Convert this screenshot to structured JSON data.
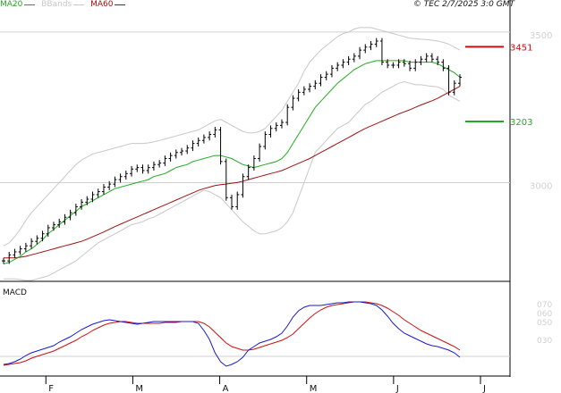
{
  "legend": [
    {
      "label": "MA20",
      "color": "#2ca02c"
    },
    {
      "label": "BBands",
      "color": "#c8c8c8"
    },
    {
      "label": "MA60",
      "color": "#a01010"
    }
  ],
  "credit": "© TEC 2/7/2025 3:0 GMT",
  "macd_title": "MACD",
  "colors": {
    "price": "#000000",
    "ma20": "#22aa22",
    "ma60": "#a01010",
    "bbands": "#c8c8c8",
    "macd": "#1a1ad0",
    "signal": "#cc1010",
    "resistance": "#cc1010",
    "support": "#22aa22"
  },
  "chart_data": {
    "type": "line",
    "price_panel": {
      "ylim": [
        2675,
        3565
      ],
      "y_ticks": [
        {
          "value": 3000,
          "label": "3000"
        },
        {
          "value": 3500,
          "label": "3500"
        }
      ],
      "close": [
        2740,
        2760,
        2770,
        2780,
        2790,
        2805,
        2815,
        2830,
        2850,
        2860,
        2870,
        2885,
        2900,
        2920,
        2935,
        2945,
        2960,
        2970,
        2985,
        2995,
        3010,
        3020,
        3030,
        3045,
        3050,
        3040,
        3050,
        3060,
        3065,
        3080,
        3090,
        3100,
        3105,
        3115,
        3130,
        3140,
        3150,
        3160,
        3175,
        3070,
        2950,
        2920,
        2960,
        3020,
        3050,
        3080,
        3120,
        3160,
        3180,
        3190,
        3200,
        3250,
        3280,
        3300,
        3310,
        3320,
        3330,
        3350,
        3360,
        3380,
        3390,
        3400,
        3410,
        3420,
        3440,
        3450,
        3460,
        3470,
        3400,
        3390,
        3390,
        3400,
        3395,
        3380,
        3400,
        3410,
        3420,
        3410,
        3400,
        3380,
        3300,
        3330,
        3350
      ],
      "ma20": [
        2730,
        2735,
        2745,
        2755,
        2770,
        2780,
        2795,
        2810,
        2830,
        2845,
        2860,
        2875,
        2890,
        2905,
        2920,
        2930,
        2940,
        2950,
        2960,
        2970,
        2980,
        2985,
        2990,
        2995,
        3000,
        3005,
        3010,
        3020,
        3025,
        3030,
        3040,
        3050,
        3055,
        3060,
        3070,
        3075,
        3080,
        3085,
        3090,
        3090,
        3085,
        3080,
        3070,
        3060,
        3055,
        3050,
        3055,
        3060,
        3065,
        3070,
        3080,
        3100,
        3130,
        3160,
        3190,
        3220,
        3250,
        3270,
        3290,
        3310,
        3330,
        3345,
        3360,
        3375,
        3385,
        3395,
        3400,
        3405,
        3405,
        3405,
        3405,
        3405,
        3405,
        3400,
        3400,
        3400,
        3400,
        3400,
        3395,
        3385,
        3375,
        3365,
        3350
      ],
      "ma60": [
        2750,
        2750,
        2750,
        2752,
        2755,
        2760,
        2765,
        2770,
        2775,
        2780,
        2785,
        2790,
        2795,
        2800,
        2805,
        2812,
        2820,
        2828,
        2836,
        2845,
        2854,
        2862,
        2870,
        2878,
        2886,
        2894,
        2902,
        2910,
        2918,
        2926,
        2934,
        2942,
        2950,
        2958,
        2966,
        2974,
        2980,
        2985,
        2990,
        2993,
        2995,
        2998,
        3000,
        3005,
        3010,
        3015,
        3020,
        3025,
        3030,
        3035,
        3040,
        3048,
        3056,
        3064,
        3072,
        3080,
        3090,
        3100,
        3110,
        3120,
        3130,
        3140,
        3150,
        3160,
        3170,
        3180,
        3188,
        3196,
        3204,
        3212,
        3220,
        3228,
        3235,
        3242,
        3250,
        3258,
        3265,
        3272,
        3280,
        3290,
        3300,
        3310,
        3320
      ],
      "bb_upper": [
        2790,
        2800,
        2820,
        2845,
        2875,
        2900,
        2920,
        2940,
        2960,
        2980,
        3000,
        3020,
        3040,
        3060,
        3075,
        3085,
        3095,
        3100,
        3105,
        3110,
        3115,
        3120,
        3125,
        3130,
        3130,
        3130,
        3132,
        3135,
        3140,
        3145,
        3150,
        3155,
        3160,
        3165,
        3170,
        3175,
        3185,
        3195,
        3205,
        3210,
        3200,
        3190,
        3180,
        3170,
        3165,
        3165,
        3170,
        3180,
        3200,
        3220,
        3240,
        3270,
        3300,
        3330,
        3370,
        3400,
        3420,
        3440,
        3455,
        3470,
        3485,
        3495,
        3500,
        3510,
        3515,
        3515,
        3515,
        3510,
        3505,
        3500,
        3495,
        3490,
        3485,
        3480,
        3478,
        3476,
        3475,
        3473,
        3470,
        3466,
        3460,
        3450,
        3440
      ],
      "bb_lower": [
        2680,
        2680,
        2680,
        2678,
        2675,
        2675,
        2680,
        2685,
        2690,
        2700,
        2710,
        2720,
        2730,
        2740,
        2755,
        2770,
        2785,
        2800,
        2810,
        2820,
        2830,
        2840,
        2850,
        2860,
        2865,
        2870,
        2880,
        2885,
        2895,
        2905,
        2915,
        2925,
        2935,
        2945,
        2955,
        2965,
        2975,
        2970,
        2960,
        2950,
        2930,
        2910,
        2890,
        2870,
        2855,
        2840,
        2830,
        2830,
        2835,
        2840,
        2850,
        2870,
        2900,
        2950,
        3000,
        3050,
        3100,
        3120,
        3140,
        3160,
        3180,
        3190,
        3200,
        3220,
        3240,
        3260,
        3270,
        3285,
        3300,
        3310,
        3320,
        3330,
        3335,
        3330,
        3325,
        3325,
        3322,
        3320,
        3318,
        3310,
        3290,
        3280,
        3270
      ],
      "levels": [
        {
          "label": "3451",
          "value": 3451
        },
        {
          "label": "3203",
          "value": 3203
        }
      ]
    },
    "macd_panel": {
      "ylim": [
        -10,
        90
      ],
      "y_ticks": [
        {
          "value": 30,
          "label": "030"
        },
        {
          "value": 50,
          "label": "050"
        },
        {
          "value": 60,
          "label": "060"
        },
        {
          "value": 70,
          "label": "070"
        }
      ],
      "macd": [
        2,
        3,
        5,
        8,
        12,
        15,
        17,
        19,
        21,
        23,
        27,
        30,
        33,
        37,
        41,
        44,
        47,
        49,
        51,
        52,
        51,
        50,
        49,
        48,
        47,
        48,
        49,
        50,
        50,
        50,
        50,
        50,
        50,
        50,
        50,
        48,
        40,
        30,
        15,
        5,
        0,
        2,
        5,
        10,
        18,
        22,
        26,
        28,
        30,
        33,
        37,
        45,
        55,
        62,
        66,
        68,
        68,
        68,
        69,
        70,
        71,
        71,
        72,
        72,
        72,
        71,
        70,
        68,
        63,
        56,
        48,
        42,
        37,
        34,
        31,
        28,
        25,
        23,
        22,
        20,
        18,
        15,
        10
      ],
      "signal": [
        1,
        2,
        3,
        4,
        6,
        9,
        11,
        13,
        15,
        17,
        20,
        23,
        26,
        29,
        33,
        36,
        40,
        43,
        46,
        48,
        49,
        50,
        50,
        49,
        48,
        48,
        48,
        48,
        48,
        49,
        49,
        49,
        50,
        50,
        50,
        50,
        48,
        44,
        38,
        32,
        26,
        22,
        20,
        18,
        18,
        19,
        21,
        23,
        25,
        27,
        29,
        32,
        36,
        42,
        48,
        54,
        59,
        63,
        66,
        68,
        69,
        70,
        71,
        72,
        72,
        72,
        71,
        70,
        68,
        65,
        61,
        57,
        52,
        48,
        44,
        40,
        37,
        34,
        31,
        28,
        25,
        22,
        18
      ]
    },
    "x_labels": [
      {
        "label": "F",
        "index": 3
      },
      {
        "label": "M",
        "index": 15
      },
      {
        "label": "A",
        "index": 27
      },
      {
        "label": "M",
        "index": 39
      },
      {
        "label": "J",
        "index": 51
      },
      {
        "label": "J",
        "index": 63
      }
    ]
  }
}
